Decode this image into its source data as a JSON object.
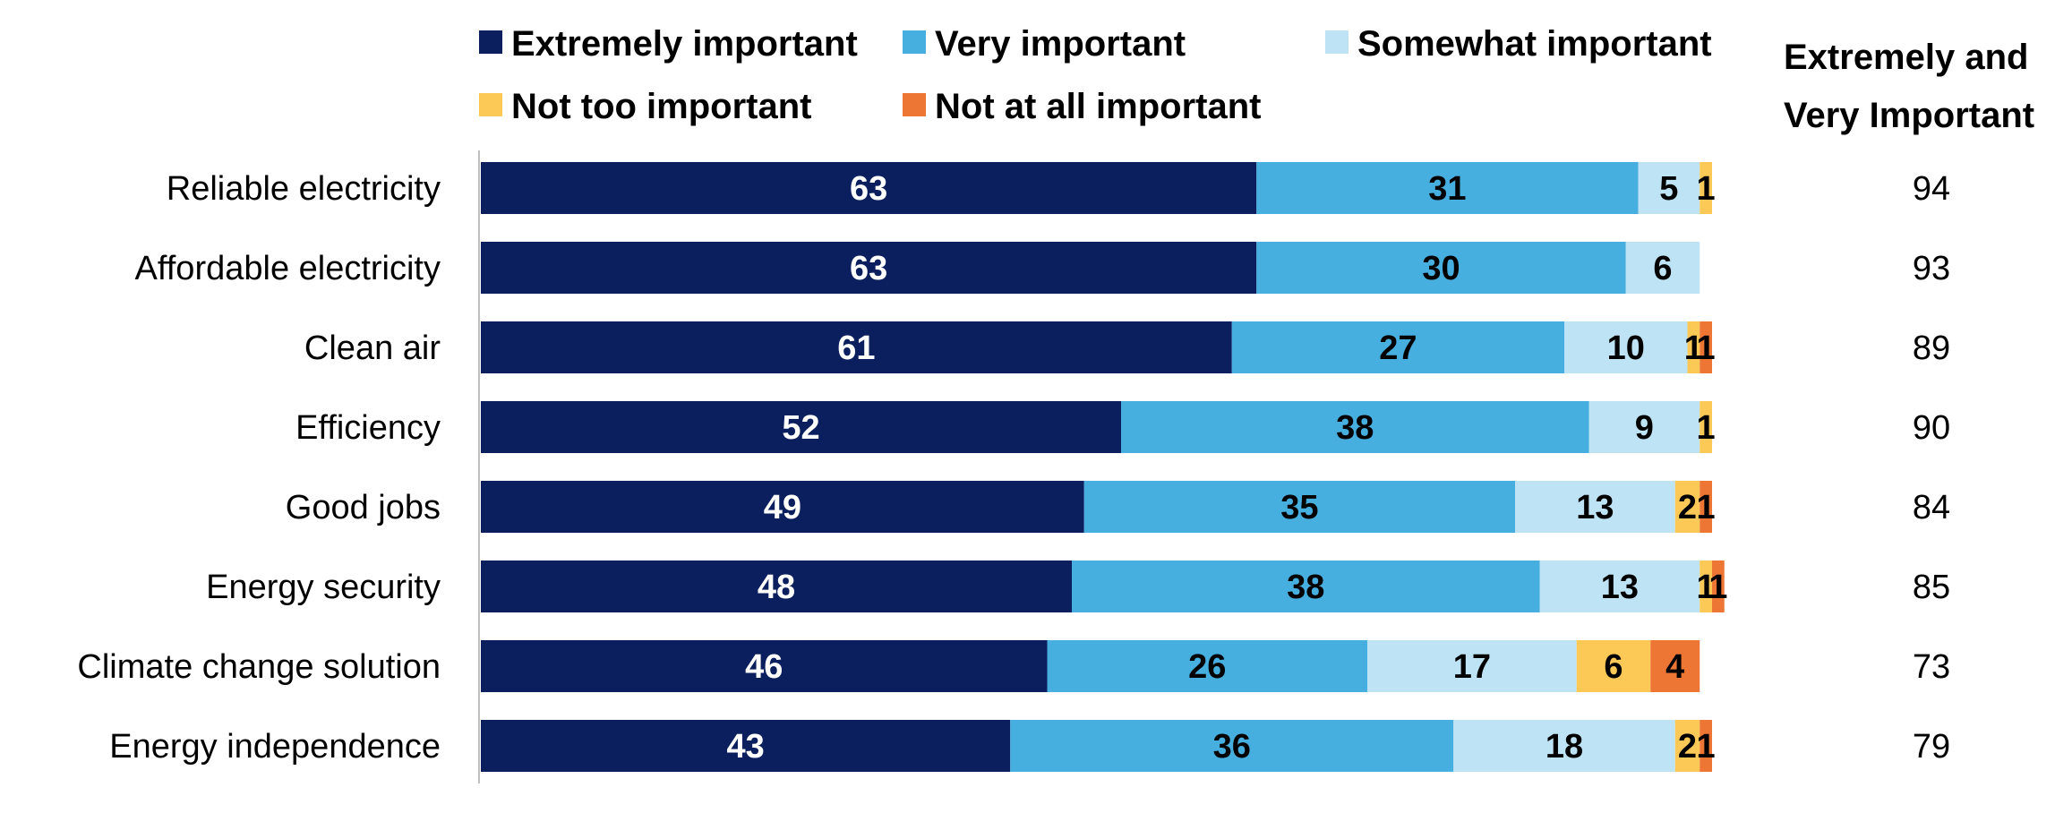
{
  "chart_data": {
    "type": "bar",
    "orientation": "horizontal",
    "stacked": true,
    "title": "",
    "xlabel": "",
    "ylabel": "",
    "xlim": [
      0,
      100
    ],
    "categories": [
      "Reliable electricity",
      "Affordable electricity",
      "Clean air",
      "Efficiency",
      "Good jobs",
      "Energy security",
      "Climate change solution",
      "Energy independence"
    ],
    "series": [
      {
        "name": "Extremely important",
        "color": "#0B1F5F",
        "label_color": "#FFFFFF",
        "values": [
          63,
          63,
          61,
          52,
          49,
          48,
          46,
          43
        ]
      },
      {
        "name": "Very important",
        "color": "#47AEE0",
        "label_color": "#000000",
        "values": [
          31,
          30,
          27,
          38,
          35,
          38,
          26,
          36
        ]
      },
      {
        "name": "Somewhat important",
        "color": "#BEE3F4",
        "label_color": "#000000",
        "values": [
          5,
          6,
          10,
          9,
          13,
          13,
          17,
          18
        ]
      },
      {
        "name": "Not too important",
        "color": "#FCC956",
        "label_color": "#000000",
        "values": [
          1,
          0,
          1,
          1,
          2,
          1,
          6,
          2
        ]
      },
      {
        "name": "Not at all important",
        "color": "#ED7634",
        "label_color": "#000000",
        "values": [
          0,
          0,
          1,
          0,
          1,
          1,
          4,
          1
        ]
      }
    ],
    "segment_labels": [
      [
        "63",
        "31",
        "5",
        "1",
        ""
      ],
      [
        "63",
        "30",
        "6",
        "",
        ""
      ],
      [
        "61",
        "27",
        "10",
        "1",
        "1"
      ],
      [
        "52",
        "38",
        "9",
        "1",
        ""
      ],
      [
        "49",
        "35",
        "13",
        "2",
        "1"
      ],
      [
        "48",
        "38",
        "13",
        "1",
        "1"
      ],
      [
        "46",
        "26",
        "17",
        "6",
        "4"
      ],
      [
        "43",
        "36",
        "18",
        "2",
        "1"
      ]
    ],
    "summary_column": {
      "header_line1": "Extremely and",
      "header_line2": "Very Important",
      "values": [
        94,
        93,
        89,
        90,
        84,
        85,
        73,
        79
      ]
    },
    "legend_position": "top"
  }
}
